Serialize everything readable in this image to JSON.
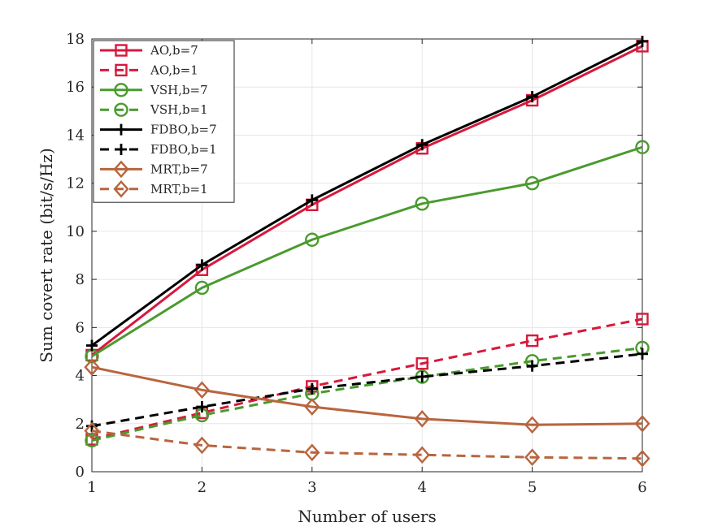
{
  "chart_data": {
    "type": "line",
    "title": "",
    "xlabel": "Number of users",
    "ylabel": "Sum covert rate (bit/s/Hz)",
    "xlim": [
      1,
      6
    ],
    "ylim": [
      0,
      18
    ],
    "xticks": [
      1,
      2,
      3,
      4,
      5,
      6
    ],
    "yticks": [
      0,
      2,
      4,
      6,
      8,
      10,
      12,
      14,
      16,
      18
    ],
    "grid": true,
    "legend_position": "top-left",
    "x": [
      1,
      2,
      3,
      4,
      5,
      6
    ],
    "series": [
      {
        "name": "AO,b=7",
        "color": "#d7193c",
        "dash": "solid",
        "marker": "square",
        "values": [
          4.85,
          8.4,
          11.1,
          13.45,
          15.45,
          17.7
        ]
      },
      {
        "name": "AO,b=1",
        "color": "#d7193c",
        "dash": "dashed",
        "marker": "square",
        "values": [
          1.35,
          2.45,
          3.55,
          4.5,
          5.45,
          6.35
        ]
      },
      {
        "name": "VSH,b=7",
        "color": "#4a9a2e",
        "dash": "solid",
        "marker": "circle",
        "values": [
          4.8,
          7.65,
          9.65,
          11.15,
          12.0,
          13.5
        ]
      },
      {
        "name": "VSH,b=1",
        "color": "#4a9a2e",
        "dash": "dashed",
        "marker": "circle",
        "values": [
          1.3,
          2.35,
          3.25,
          3.95,
          4.6,
          5.15
        ]
      },
      {
        "name": "FDBO,b=7",
        "color": "#000000",
        "dash": "solid",
        "marker": "plus",
        "values": [
          5.25,
          8.6,
          11.3,
          13.6,
          15.6,
          17.9
        ]
      },
      {
        "name": "FDBO,b=1",
        "color": "#000000",
        "dash": "dashed",
        "marker": "plus",
        "values": [
          1.9,
          2.7,
          3.45,
          3.95,
          4.4,
          4.9
        ]
      },
      {
        "name": "MRT,b=7",
        "color": "#b8653e",
        "dash": "solid",
        "marker": "diamond",
        "values": [
          4.35,
          3.4,
          2.7,
          2.2,
          1.95,
          2.0
        ]
      },
      {
        "name": "MRT,b=1",
        "color": "#b8653e",
        "dash": "dashed",
        "marker": "diamond",
        "values": [
          1.7,
          1.1,
          0.8,
          0.7,
          0.6,
          0.55
        ]
      }
    ]
  }
}
